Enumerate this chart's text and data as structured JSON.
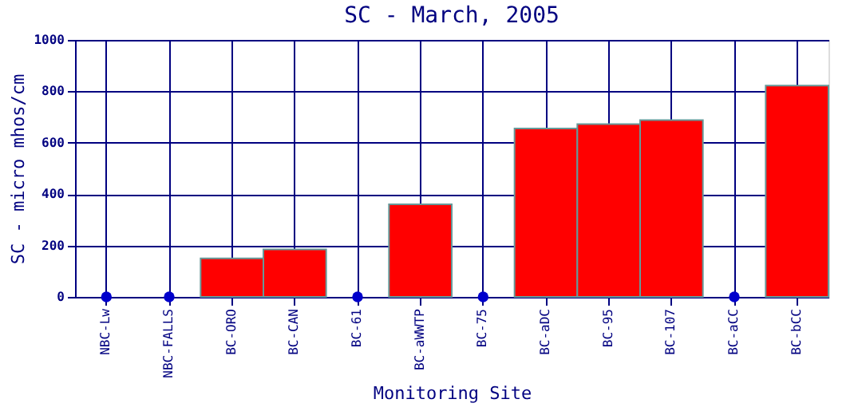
{
  "chart_data": {
    "type": "bar",
    "title": "SC - March, 2005",
    "xlabel": "Monitoring Site",
    "ylabel": "SC - micro mhos/cm",
    "categories": [
      "NBC-Lw",
      "NBC-FALLS",
      "BC-ORO",
      "BC-CAN",
      "BC-61",
      "BC-aWWTP",
      "BC-75",
      "BC-aDC",
      "BC-95",
      "BC-107",
      "BC-aCC",
      "BC-bCC"
    ],
    "series": [
      {
        "color": "#ff0000",
        "values": [
          null,
          null,
          150,
          185,
          null,
          360,
          null,
          655,
          672,
          688,
          null,
          822
        ]
      },
      {
        "type": "scatter",
        "color": "#0000cc",
        "marker": "circle",
        "x": [
          "NBC-Lw",
          "NBC-FALLS",
          "BC-61",
          "BC-75",
          "BC-aCC"
        ],
        "values": [
          0,
          0,
          0,
          0,
          0
        ]
      }
    ],
    "ylim": [
      0,
      1000
    ],
    "yticks": [
      0,
      200,
      400,
      600,
      800,
      1000
    ],
    "grid": true
  }
}
